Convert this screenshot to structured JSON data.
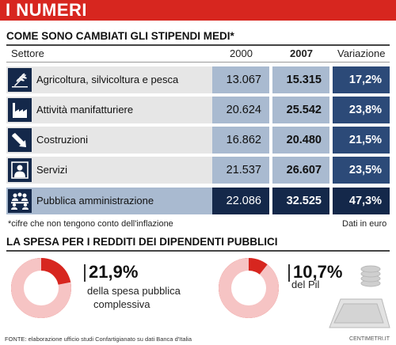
{
  "header": {
    "title": "I NUMERI"
  },
  "salaries": {
    "title": "COME SONO CAMBIATI GLI STIPENDI MEDI*",
    "columns": {
      "sector": "Settore",
      "y2000": "2000",
      "y2007": "2007",
      "change": "Variazione"
    },
    "rows": [
      {
        "icon": "wheat-icon",
        "label": "Agricoltura, silvicoltura e pesca",
        "y2000": "13.067",
        "y2007": "15.315",
        "change": "17,2%"
      },
      {
        "icon": "factory-icon",
        "label": "Attività manifatturiere",
        "y2000": "20.624",
        "y2007": "25.542",
        "change": "23,8%"
      },
      {
        "icon": "construction-icon",
        "label": "Costruzioni",
        "y2000": "16.862",
        "y2007": "20.480",
        "change": "21,5%"
      },
      {
        "icon": "person-icon",
        "label": "Servizi",
        "y2000": "21.537",
        "y2007": "26.607",
        "change": "23,5%"
      },
      {
        "icon": "group-icon",
        "label": "Pubblica amministrazione",
        "y2000": "22.086",
        "y2007": "32.525",
        "change": "47,3%"
      }
    ],
    "footnote": "*cifre che non tengono conto dell'inflazione",
    "unit_note": "Dati in euro"
  },
  "spending": {
    "title": "LA SPESA PER I REDDITI DEI DIPENDENTI PUBBLICI",
    "stats": [
      {
        "value": "21,9%",
        "fraction": 0.219,
        "line1": "della spesa pubblica",
        "line2": "complessiva"
      },
      {
        "value": "10,7%",
        "fraction": 0.107,
        "line1": "del Pil",
        "line2": ""
      }
    ]
  },
  "source": "FONTE: elaborazione ufficio studi Confartigianato su dati Banca d'Italia",
  "credit": "CENTIMETRI.IT",
  "colors": {
    "red": "#d7261f",
    "navy": "#14284a",
    "blue": "#2c4a78",
    "light_blue": "#a9bad0",
    "pink": "#f6c4c4"
  }
}
